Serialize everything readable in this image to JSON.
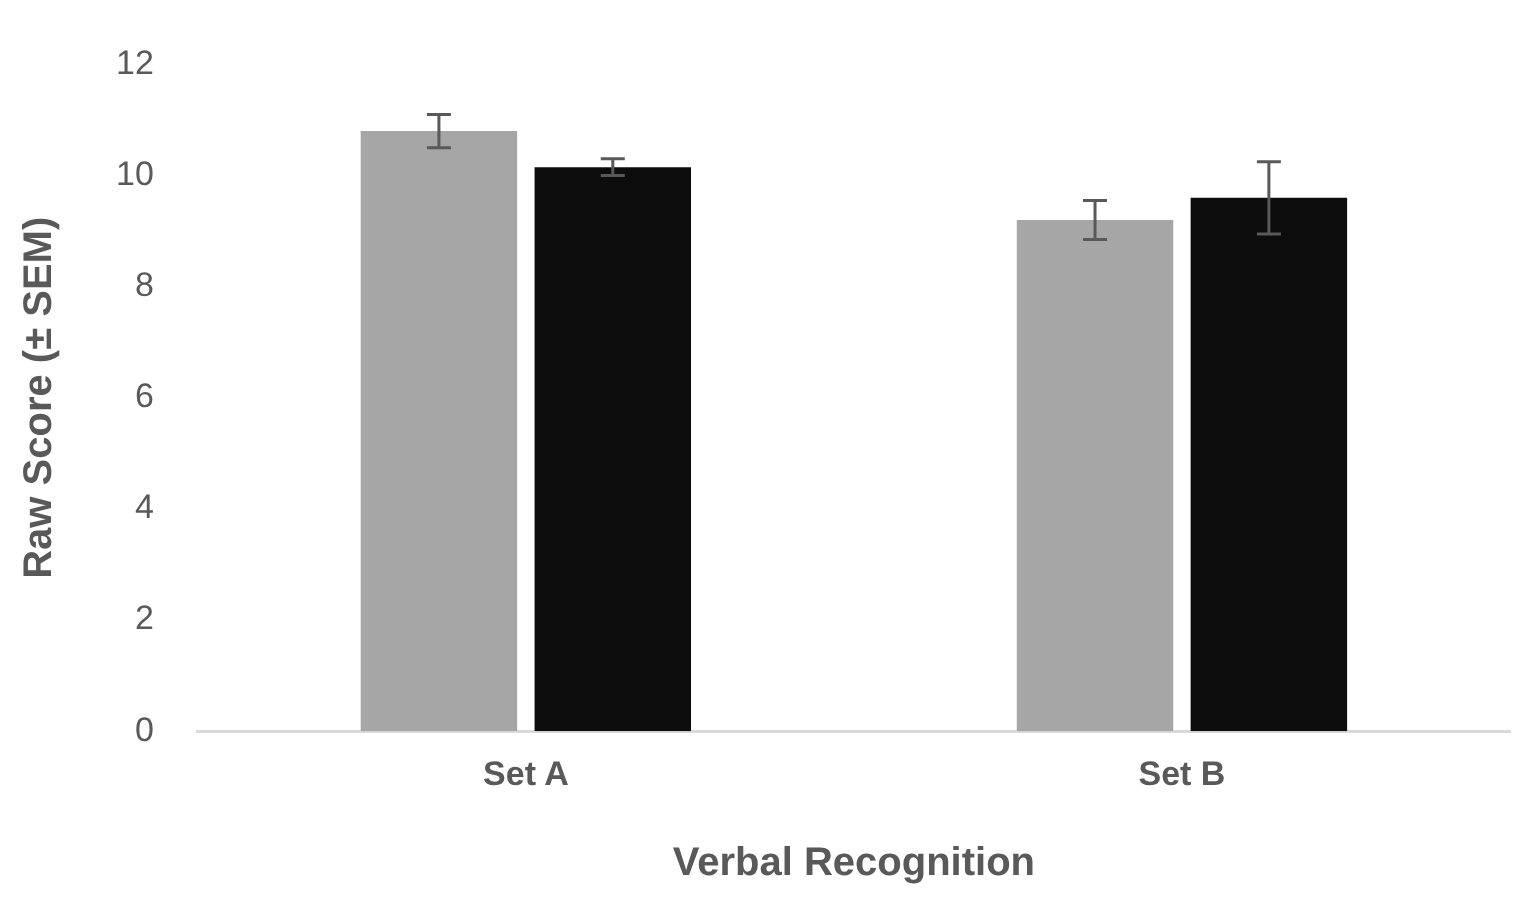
{
  "chart_data": {
    "type": "bar",
    "xlabel": "Verbal Recognition",
    "ylabel": "Raw Score (± SEM)",
    "categories": [
      "Set A",
      "Set B"
    ],
    "series": [
      {
        "color": "#a6a6a6",
        "values": [
          10.8,
          9.2
        ],
        "errors": [
          0.3,
          0.35
        ]
      },
      {
        "color": "#0d0d0d",
        "values": [
          10.15,
          9.6
        ],
        "errors": [
          0.15,
          0.65
        ]
      }
    ],
    "ylim": [
      0,
      12
    ],
    "yticks": [
      0,
      2,
      4,
      6,
      8,
      10,
      12
    ],
    "grid": false,
    "legend": false
  }
}
